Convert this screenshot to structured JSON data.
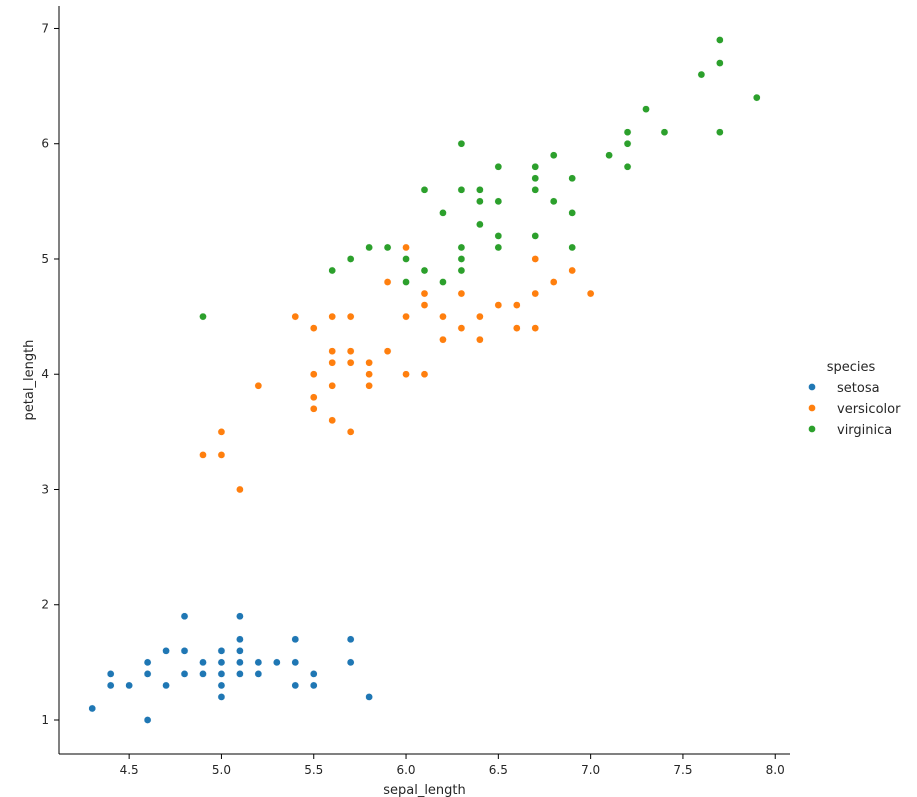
{
  "chart_data": {
    "type": "scatter",
    "xlabel": "sepal_length",
    "ylabel": "petal_length",
    "xlim": [
      4.12,
      8.08
    ],
    "ylim": [
      0.705,
      7.195
    ],
    "xticks": [
      4.5,
      5.0,
      5.5,
      6.0,
      6.5,
      7.0,
      7.5,
      8.0
    ],
    "xtick_labels": [
      "4.5",
      "5.0",
      "5.5",
      "6.0",
      "6.5",
      "7.0",
      "7.5",
      "8.0"
    ],
    "yticks": [
      1,
      2,
      3,
      4,
      5,
      6,
      7
    ],
    "ytick_labels": [
      "1",
      "2",
      "3",
      "4",
      "5",
      "6",
      "7"
    ],
    "grid": false,
    "legend": {
      "title": "species",
      "placement": "right"
    },
    "series": [
      {
        "name": "setosa",
        "color": "#1f77b4",
        "points": [
          [
            5.1,
            1.4
          ],
          [
            4.9,
            1.4
          ],
          [
            4.7,
            1.3
          ],
          [
            4.6,
            1.5
          ],
          [
            5.0,
            1.4
          ],
          [
            5.4,
            1.7
          ],
          [
            4.6,
            1.4
          ],
          [
            5.0,
            1.5
          ],
          [
            4.4,
            1.4
          ],
          [
            4.9,
            1.5
          ],
          [
            5.4,
            1.5
          ],
          [
            4.8,
            1.6
          ],
          [
            4.8,
            1.4
          ],
          [
            4.3,
            1.1
          ],
          [
            5.8,
            1.2
          ],
          [
            5.7,
            1.5
          ],
          [
            5.4,
            1.3
          ],
          [
            5.1,
            1.4
          ],
          [
            5.7,
            1.7
          ],
          [
            5.1,
            1.5
          ],
          [
            5.4,
            1.7
          ],
          [
            5.1,
            1.5
          ],
          [
            4.6,
            1.0
          ],
          [
            5.1,
            1.7
          ],
          [
            4.8,
            1.9
          ],
          [
            5.0,
            1.6
          ],
          [
            5.0,
            1.6
          ],
          [
            5.2,
            1.5
          ],
          [
            5.2,
            1.4
          ],
          [
            4.7,
            1.6
          ],
          [
            4.8,
            1.6
          ],
          [
            5.4,
            1.5
          ],
          [
            5.2,
            1.5
          ],
          [
            5.5,
            1.4
          ],
          [
            4.9,
            1.5
          ],
          [
            5.0,
            1.2
          ],
          [
            5.5,
            1.3
          ],
          [
            4.9,
            1.4
          ],
          [
            4.4,
            1.3
          ],
          [
            5.1,
            1.5
          ],
          [
            5.0,
            1.3
          ],
          [
            4.5,
            1.3
          ],
          [
            4.4,
            1.3
          ],
          [
            5.0,
            1.6
          ],
          [
            5.1,
            1.9
          ],
          [
            4.8,
            1.4
          ],
          [
            5.1,
            1.6
          ],
          [
            4.6,
            1.4
          ],
          [
            5.3,
            1.5
          ],
          [
            5.0,
            1.4
          ]
        ]
      },
      {
        "name": "versicolor",
        "color": "#ff7f0e",
        "points": [
          [
            7.0,
            4.7
          ],
          [
            6.4,
            4.5
          ],
          [
            6.9,
            4.9
          ],
          [
            5.5,
            4.0
          ],
          [
            6.5,
            4.6
          ],
          [
            5.7,
            4.5
          ],
          [
            6.3,
            4.7
          ],
          [
            4.9,
            3.3
          ],
          [
            6.6,
            4.6
          ],
          [
            5.2,
            3.9
          ],
          [
            5.0,
            3.5
          ],
          [
            5.9,
            4.2
          ],
          [
            6.0,
            4.0
          ],
          [
            6.1,
            4.7
          ],
          [
            5.6,
            3.6
          ],
          [
            6.7,
            4.4
          ],
          [
            5.6,
            4.5
          ],
          [
            5.8,
            4.1
          ],
          [
            6.2,
            4.5
          ],
          [
            5.6,
            3.9
          ],
          [
            5.9,
            4.8
          ],
          [
            6.1,
            4.0
          ],
          [
            6.3,
            4.9
          ],
          [
            6.1,
            4.7
          ],
          [
            6.4,
            4.3
          ],
          [
            6.6,
            4.4
          ],
          [
            6.8,
            4.8
          ],
          [
            6.7,
            5.0
          ],
          [
            6.0,
            4.5
          ],
          [
            5.7,
            3.5
          ],
          [
            5.5,
            3.8
          ],
          [
            5.5,
            3.7
          ],
          [
            5.8,
            3.9
          ],
          [
            6.0,
            5.1
          ],
          [
            5.4,
            4.5
          ],
          [
            6.0,
            4.5
          ],
          [
            6.7,
            4.7
          ],
          [
            6.3,
            4.4
          ],
          [
            5.6,
            4.1
          ],
          [
            5.5,
            4.0
          ],
          [
            5.5,
            4.4
          ],
          [
            6.1,
            4.6
          ],
          [
            5.8,
            4.0
          ],
          [
            5.0,
            3.3
          ],
          [
            5.6,
            4.2
          ],
          [
            5.7,
            4.2
          ],
          [
            5.7,
            4.2
          ],
          [
            6.2,
            4.3
          ],
          [
            5.1,
            3.0
          ],
          [
            5.7,
            4.1
          ]
        ]
      },
      {
        "name": "virginica",
        "color": "#2ca02c",
        "points": [
          [
            6.3,
            6.0
          ],
          [
            5.8,
            5.1
          ],
          [
            7.1,
            5.9
          ],
          [
            6.3,
            5.6
          ],
          [
            6.5,
            5.8
          ],
          [
            7.6,
            6.6
          ],
          [
            4.9,
            4.5
          ],
          [
            7.3,
            6.3
          ],
          [
            6.7,
            5.8
          ],
          [
            7.2,
            6.1
          ],
          [
            6.5,
            5.1
          ],
          [
            6.4,
            5.3
          ],
          [
            6.8,
            5.5
          ],
          [
            5.7,
            5.0
          ],
          [
            5.8,
            5.1
          ],
          [
            6.4,
            5.3
          ],
          [
            6.5,
            5.5
          ],
          [
            7.7,
            6.7
          ],
          [
            7.7,
            6.9
          ],
          [
            6.0,
            5.0
          ],
          [
            6.9,
            5.7
          ],
          [
            5.6,
            4.9
          ],
          [
            7.7,
            6.7
          ],
          [
            6.3,
            4.9
          ],
          [
            6.7,
            5.7
          ],
          [
            7.2,
            6.0
          ],
          [
            6.2,
            4.8
          ],
          [
            6.1,
            4.9
          ],
          [
            6.4,
            5.6
          ],
          [
            7.2,
            5.8
          ],
          [
            7.4,
            6.1
          ],
          [
            7.9,
            6.4
          ],
          [
            6.4,
            5.6
          ],
          [
            6.3,
            5.1
          ],
          [
            6.1,
            5.6
          ],
          [
            7.7,
            6.1
          ],
          [
            6.3,
            5.6
          ],
          [
            6.4,
            5.5
          ],
          [
            6.0,
            4.8
          ],
          [
            6.9,
            5.4
          ],
          [
            6.7,
            5.6
          ],
          [
            6.9,
            5.1
          ],
          [
            5.8,
            5.1
          ],
          [
            6.8,
            5.9
          ],
          [
            6.7,
            5.7
          ],
          [
            6.7,
            5.2
          ],
          [
            6.3,
            5.0
          ],
          [
            6.5,
            5.2
          ],
          [
            6.2,
            5.4
          ],
          [
            5.9,
            5.1
          ]
        ]
      }
    ]
  }
}
